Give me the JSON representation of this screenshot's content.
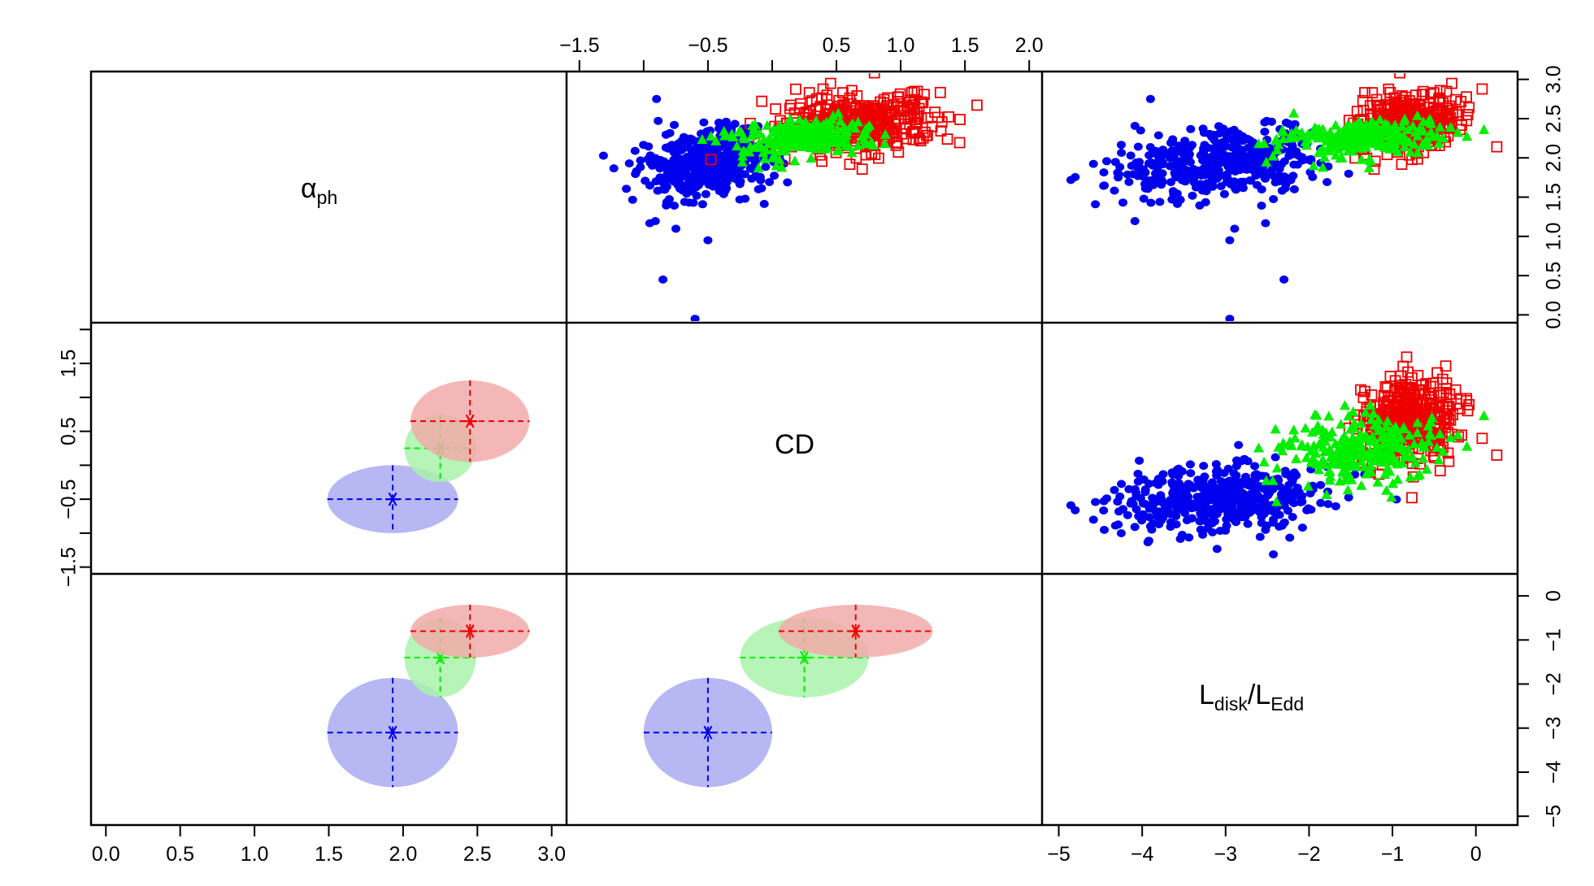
{
  "chart_data": {
    "type": "scatter",
    "layout": "scatterplot-matrix",
    "variables": [
      {
        "key": "alpha",
        "label_main": "α",
        "label_sub": "ph",
        "range": [
          -0.1,
          3.1
        ],
        "ticks": [
          0.0,
          0.5,
          1.0,
          1.5,
          2.0,
          2.5,
          3.0
        ],
        "tick_labels": [
          "0.0",
          "0.5",
          "1.0",
          "1.5",
          "2.0",
          "2.5",
          "3.0"
        ]
      },
      {
        "key": "cd",
        "label_main": "CD",
        "label_sub": "",
        "range": [
          -1.6,
          2.1
        ],
        "ticks": [
          -1.5,
          -1.0,
          -0.5,
          0.0,
          0.5,
          1.0,
          1.5,
          2.0
        ],
        "top_tick_labels": [
          "−1.5",
          "",
          "−0.5",
          "",
          "0.5",
          "1.0",
          "1.5",
          "2.0"
        ],
        "left_tick_labels": [
          "−1.5",
          "",
          "−0.5",
          "",
          "0.5",
          "",
          "1.5"
        ]
      },
      {
        "key": "ledd",
        "label_main": "L",
        "label_sub": "disk",
        "label_main2": "L",
        "label_sub2": "Edd",
        "range": [
          -5.2,
          0.5
        ],
        "ticks": [
          -5,
          -4,
          -3,
          -2,
          -1,
          0
        ],
        "tick_labels": [
          "−5",
          "−4",
          "−3",
          "−2",
          "−1",
          "0"
        ]
      }
    ],
    "series": [
      {
        "name": "blue",
        "color": "#0000ee",
        "fill": "#aaaaf2",
        "marker": "filled-circle",
        "n_points": 420,
        "mean": {
          "alpha": 1.93,
          "cd": -0.5,
          "ledd": -3.1
        },
        "sd": {
          "alpha": 0.22,
          "cd": 0.25,
          "ledd": 0.62
        },
        "outliers": [
          {
            "alpha": 2.75,
            "cd": -0.9,
            "ledd": -3.9
          },
          {
            "alpha": 0.95,
            "cd": -0.5,
            "ledd": -2.95
          },
          {
            "alpha": 0.45,
            "cd": -0.85,
            "ledd": -2.3
          },
          {
            "alpha": -0.05,
            "cd": -0.6,
            "ledd": -2.95
          }
        ]
      },
      {
        "name": "green",
        "color": "#00ee00",
        "fill": "#aaf2aa",
        "marker": "filled-triangle",
        "n_points": 260,
        "mean": {
          "alpha": 2.25,
          "cd": 0.25,
          "ledd": -1.4
        },
        "sd": {
          "alpha": 0.12,
          "cd": 0.25,
          "ledd": 0.45
        }
      },
      {
        "name": "red",
        "color": "#ee0000",
        "fill": "#f2aaaa",
        "marker": "open-square",
        "n_points": 380,
        "mean": {
          "alpha": 2.45,
          "cd": 0.65,
          "ledd": -0.8
        },
        "sd": {
          "alpha": 0.2,
          "cd": 0.3,
          "ledd": 0.3
        }
      }
    ]
  }
}
